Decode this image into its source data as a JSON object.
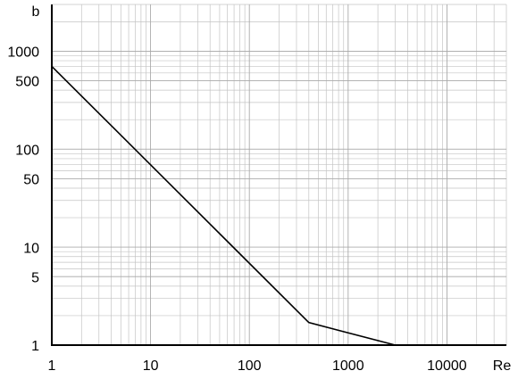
{
  "chart_data": {
    "type": "line",
    "x_label": "Re",
    "y_label": "b",
    "x": [
      1,
      400,
      3000,
      40000
    ],
    "series": [
      {
        "color": "#000000",
        "values": [
          700,
          1.7,
          1,
          1
        ]
      }
    ],
    "xlim": [
      1,
      40000
    ],
    "ylim": [
      1,
      3000
    ],
    "xticks": [
      1,
      10,
      100,
      1000,
      10000
    ],
    "yticks": [
      1,
      5,
      10,
      50,
      100,
      500,
      1000
    ],
    "xscale": "log",
    "yscale": "log",
    "grid": true
  }
}
